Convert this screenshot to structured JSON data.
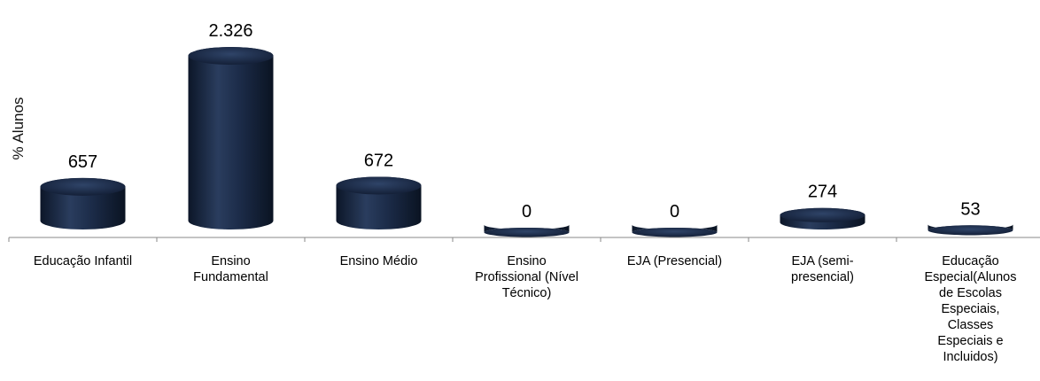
{
  "chart_data": {
    "type": "bar",
    "ylabel": "% Alunos",
    "categories": [
      "Educação Infantil",
      "Ensino\nFundamental",
      "Ensino Médio",
      "Ensino\nProfissional (Nível\nTécnico)",
      "EJA (Presencial)",
      "EJA (semi-\npresencial)",
      "Educação\nEspecial(Alunos\nde Escolas\nEspeciais,\nClasses\nEspeciais e\nIncluidos)"
    ],
    "values": [
      657,
      2326,
      672,
      0,
      0,
      274,
      53
    ],
    "data_labels": [
      "657",
      "2.326",
      "672",
      "0",
      "0",
      "274",
      "53"
    ],
    "ylim": [
      0,
      2326
    ],
    "grid": false,
    "bar_color": "#1b2a47"
  }
}
